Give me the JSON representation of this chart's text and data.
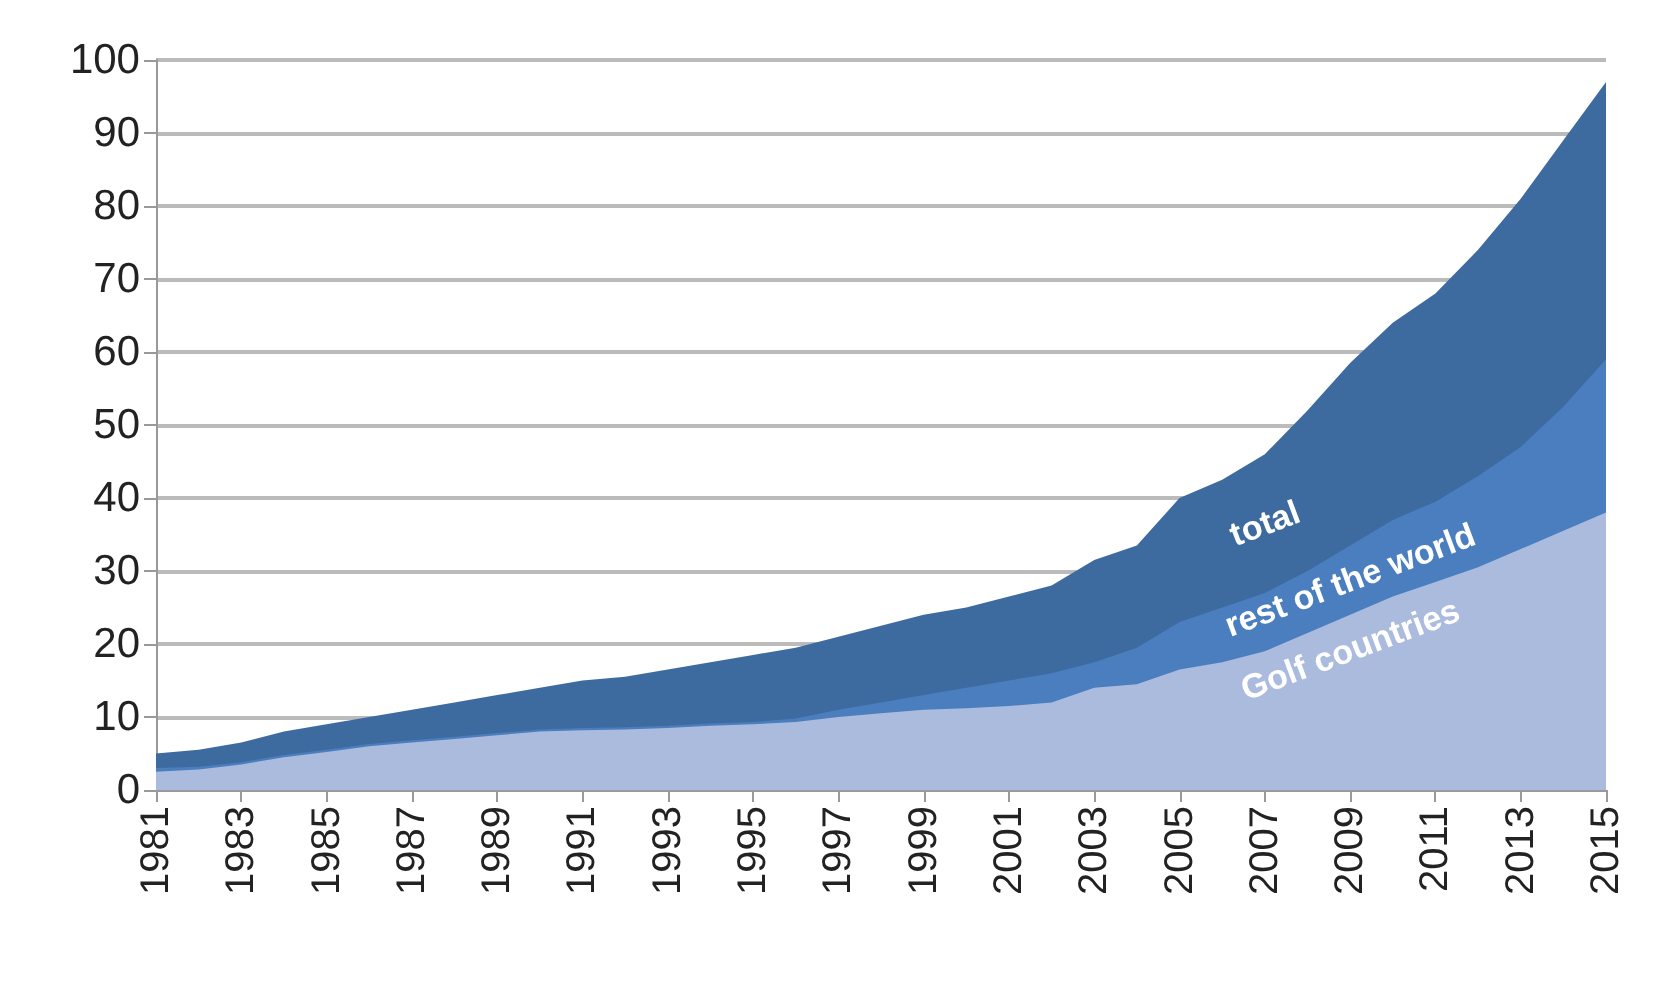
{
  "chart_data": {
    "type": "area",
    "x": [
      1981,
      1982,
      1983,
      1984,
      1985,
      1986,
      1987,
      1988,
      1989,
      1990,
      1991,
      1992,
      1993,
      1994,
      1995,
      1996,
      1997,
      1998,
      1999,
      2000,
      2001,
      2002,
      2003,
      2004,
      2005,
      2006,
      2007,
      2008,
      2009,
      2010,
      2011,
      2012,
      2013,
      2014,
      2015
    ],
    "series": [
      {
        "name": "total",
        "color": "#3d6a9f",
        "values": [
          5,
          5.5,
          6.5,
          8,
          9,
          10,
          11,
          12,
          13,
          14,
          15,
          15.5,
          16.5,
          17.5,
          18.5,
          19.5,
          21,
          22.5,
          24,
          25,
          26.5,
          28,
          31.5,
          33.5,
          40,
          42.5,
          46,
          52,
          58.5,
          64,
          68,
          74,
          81,
          89,
          97
        ]
      },
      {
        "name": "rest of the world",
        "color": "#4a7ebf",
        "values": [
          3,
          3.2,
          3.8,
          4.8,
          5.5,
          6.3,
          6.8,
          7.3,
          7.8,
          8.3,
          8.5,
          8.6,
          8.8,
          9.1,
          9.3,
          9.8,
          11,
          12,
          13,
          14,
          15,
          16,
          17.5,
          19.5,
          23,
          25,
          27,
          30,
          33.5,
          37,
          39.5,
          43,
          47,
          52.5,
          59
        ]
      },
      {
        "name": "Golf countries",
        "color": "#abbbdd",
        "values": [
          2.5,
          2.8,
          3.5,
          4.5,
          5.2,
          6,
          6.5,
          7,
          7.5,
          8,
          8.2,
          8.3,
          8.5,
          8.8,
          9,
          9.3,
          10,
          10.5,
          11,
          11.2,
          11.5,
          12,
          14,
          14.5,
          16.5,
          17.5,
          19,
          21.5,
          24,
          26.5,
          28.5,
          30.5,
          33,
          35.5,
          38
        ]
      }
    ],
    "xlim": [
      1981,
      2015
    ],
    "xticks": [
      1981,
      1983,
      1985,
      1987,
      1989,
      1991,
      1993,
      1995,
      1997,
      1999,
      2001,
      2003,
      2005,
      2007,
      2009,
      2011,
      2013,
      2015
    ],
    "ylim": [
      0,
      100
    ],
    "yticks": [
      0,
      10,
      20,
      30,
      40,
      50,
      60,
      70,
      80,
      90,
      100
    ],
    "grid": "y",
    "legend": false
  }
}
